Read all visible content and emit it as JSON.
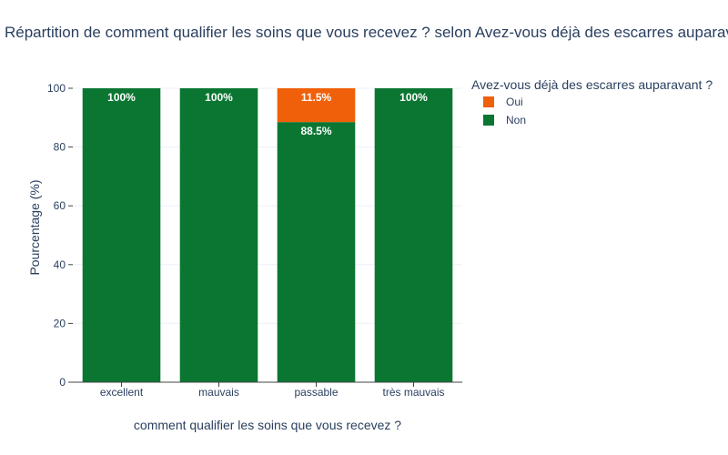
{
  "chart_data": {
    "type": "bar",
    "stacked": true,
    "title": "Répartition de comment qualifier les soins que vous recevez ? selon Avez-vous déjà des escarres auparavant ? (",
    "xlabel": "comment qualifier les soins que vous recevez ?",
    "ylabel": "Pourcentage (%)",
    "ylim": [
      0,
      100
    ],
    "yticks": [
      0,
      20,
      40,
      60,
      80,
      100
    ],
    "grid": true,
    "legend_title": "Avez-vous déjà des escarres auparavant ?",
    "legend_position": "right",
    "categories": [
      "excellent",
      "mauvais",
      "passable",
      "très mauvais"
    ],
    "series": [
      {
        "name": "Non",
        "color": "#0b7632",
        "values": [
          100,
          100,
          88.5,
          100
        ],
        "labels": [
          "100%",
          "100%",
          "88.5%",
          "100%"
        ]
      },
      {
        "name": "Oui",
        "color": "#f0600a",
        "values": [
          0,
          0,
          11.5,
          0
        ],
        "labels": [
          "",
          "",
          "11.5%",
          ""
        ]
      }
    ],
    "legend_order": [
      "Oui",
      "Non"
    ]
  }
}
